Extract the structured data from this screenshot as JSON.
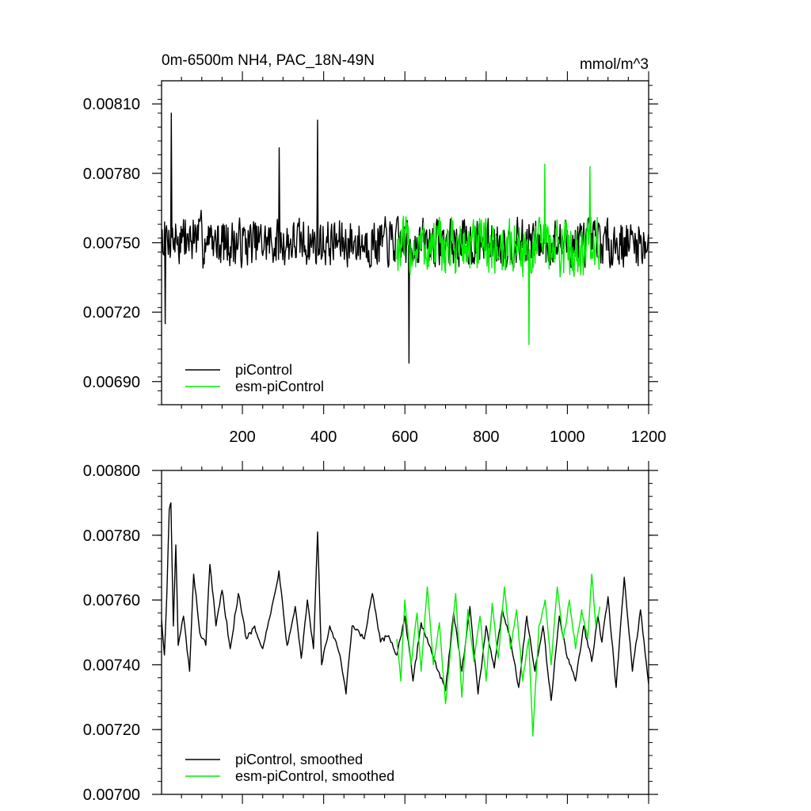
{
  "chart_data": [
    {
      "type": "line",
      "title": "0m-6500m NH4, PAC_18N-49N",
      "units": "mmol/m^3",
      "xlim": [
        1,
        1200
      ],
      "ylim": [
        0.0068,
        0.0082
      ],
      "x_ticks": [
        200,
        400,
        600,
        800,
        1000,
        1200
      ],
      "x_tick_labels": [
        "200",
        "400",
        "600",
        "800",
        "1000",
        "1200"
      ],
      "y_ticks": [
        0.0069,
        0.0072,
        0.0075,
        0.0078,
        0.0081
      ],
      "y_tick_labels": [
        "0.00690",
        "0.00720",
        "0.00750",
        "0.00780",
        "0.00810"
      ],
      "legend_position": "bottom-left",
      "series": [
        {
          "name": "piControl",
          "color": "#000000",
          "x_range": [
            1,
            1200
          ],
          "mean": 0.0075,
          "noise_amplitude": 9e-05,
          "features": [
            [
              25,
              0.00806
            ],
            [
              385,
              0.00803
            ],
            [
              610,
              0.00698
            ],
            [
              10,
              0.00715
            ],
            [
              290,
              0.00791
            ]
          ]
        },
        {
          "name": "esm-piControl",
          "color": "#00ee00",
          "x_range": [
            580,
            1080
          ],
          "mean": 0.00748,
          "noise_amplitude": 0.00011,
          "features": [
            [
              905,
              0.00706
            ],
            [
              945,
              0.00784
            ],
            [
              1055,
              0.00783
            ]
          ]
        }
      ]
    },
    {
      "type": "line",
      "xlim": [
        1,
        1200
      ],
      "ylim": [
        0.007,
        0.008
      ],
      "y_ticks": [
        0.007,
        0.0072,
        0.0074,
        0.0076,
        0.0078,
        0.008
      ],
      "y_tick_labels": [
        "0.00700",
        "0.00720",
        "0.00740",
        "0.00760",
        "0.00780",
        "0.00800"
      ],
      "legend_position": "bottom-left",
      "series": [
        {
          "name": "piControl, smoothed",
          "color": "#000000",
          "x_range": [
            1,
            1200
          ],
          "points": [
            [
              1,
              0.00754
            ],
            [
              8,
              0.00743
            ],
            [
              14,
              0.00762
            ],
            [
              20,
              0.00788
            ],
            [
              24,
              0.0079
            ],
            [
              30,
              0.00752
            ],
            [
              36,
              0.00777
            ],
            [
              42,
              0.00746
            ],
            [
              55,
              0.00755
            ],
            [
              70,
              0.00738
            ],
            [
              80,
              0.00768
            ],
            [
              95,
              0.0075
            ],
            [
              110,
              0.00746
            ],
            [
              120,
              0.00771
            ],
            [
              135,
              0.00752
            ],
            [
              150,
              0.00763
            ],
            [
              170,
              0.00745
            ],
            [
              190,
              0.00762
            ],
            [
              210,
              0.00748
            ],
            [
              230,
              0.00752
            ],
            [
              250,
              0.00745
            ],
            [
              270,
              0.00756
            ],
            [
              290,
              0.00769
            ],
            [
              310,
              0.00746
            ],
            [
              330,
              0.00758
            ],
            [
              345,
              0.00742
            ],
            [
              360,
              0.0076
            ],
            [
              375,
              0.00745
            ],
            [
              385,
              0.00781
            ],
            [
              395,
              0.0074
            ],
            [
              415,
              0.00752
            ],
            [
              440,
              0.00743
            ],
            [
              455,
              0.00731
            ],
            [
              470,
              0.00752
            ],
            [
              500,
              0.00748
            ],
            [
              520,
              0.00762
            ],
            [
              540,
              0.00747
            ],
            [
              560,
              0.00749
            ],
            [
              580,
              0.00743
            ],
            [
              600,
              0.00755
            ],
            [
              620,
              0.00735
            ],
            [
              640,
              0.00753
            ],
            [
              660,
              0.00746
            ],
            [
              700,
              0.00732
            ],
            [
              720,
              0.00756
            ],
            [
              740,
              0.00738
            ],
            [
              760,
              0.00758
            ],
            [
              780,
              0.00731
            ],
            [
              800,
              0.00752
            ],
            [
              820,
              0.00739
            ],
            [
              840,
              0.00757
            ],
            [
              860,
              0.00748
            ],
            [
              880,
              0.00733
            ],
            [
              900,
              0.00755
            ],
            [
              920,
              0.00738
            ],
            [
              940,
              0.00752
            ],
            [
              960,
              0.00729
            ],
            [
              980,
              0.00755
            ],
            [
              1000,
              0.00742
            ],
            [
              1020,
              0.00735
            ],
            [
              1040,
              0.00752
            ],
            [
              1060,
              0.00741
            ],
            [
              1075,
              0.00755
            ],
            [
              1085,
              0.00747
            ],
            [
              1100,
              0.00761
            ],
            [
              1120,
              0.00733
            ],
            [
              1140,
              0.00767
            ],
            [
              1160,
              0.00738
            ],
            [
              1180,
              0.00757
            ],
            [
              1200,
              0.00734
            ]
          ]
        },
        {
          "name": "esm-piControl, smoothed",
          "color": "#00ee00",
          "x_range": [
            580,
            1080
          ],
          "points": [
            [
              580,
              0.00748
            ],
            [
              590,
              0.00735
            ],
            [
              600,
              0.0076
            ],
            [
              615,
              0.0074
            ],
            [
              630,
              0.00756
            ],
            [
              640,
              0.00738
            ],
            [
              655,
              0.00764
            ],
            [
              670,
              0.0074
            ],
            [
              685,
              0.00753
            ],
            [
              700,
              0.00728
            ],
            [
              715,
              0.00748
            ],
            [
              725,
              0.00762
            ],
            [
              740,
              0.0073
            ],
            [
              755,
              0.00757
            ],
            [
              770,
              0.00741
            ],
            [
              785,
              0.00755
            ],
            [
              800,
              0.00735
            ],
            [
              815,
              0.00759
            ],
            [
              830,
              0.00742
            ],
            [
              845,
              0.00764
            ],
            [
              860,
              0.00745
            ],
            [
              875,
              0.00757
            ],
            [
              890,
              0.00735
            ],
            [
              905,
              0.00748
            ],
            [
              915,
              0.00718
            ],
            [
              930,
              0.00752
            ],
            [
              945,
              0.0076
            ],
            [
              960,
              0.0074
            ],
            [
              975,
              0.00764
            ],
            [
              990,
              0.00748
            ],
            [
              1005,
              0.0076
            ],
            [
              1020,
              0.00745
            ],
            [
              1035,
              0.00757
            ],
            [
              1050,
              0.00748
            ],
            [
              1060,
              0.00768
            ],
            [
              1070,
              0.00752
            ],
            [
              1080,
              0.00758
            ]
          ]
        }
      ]
    }
  ]
}
